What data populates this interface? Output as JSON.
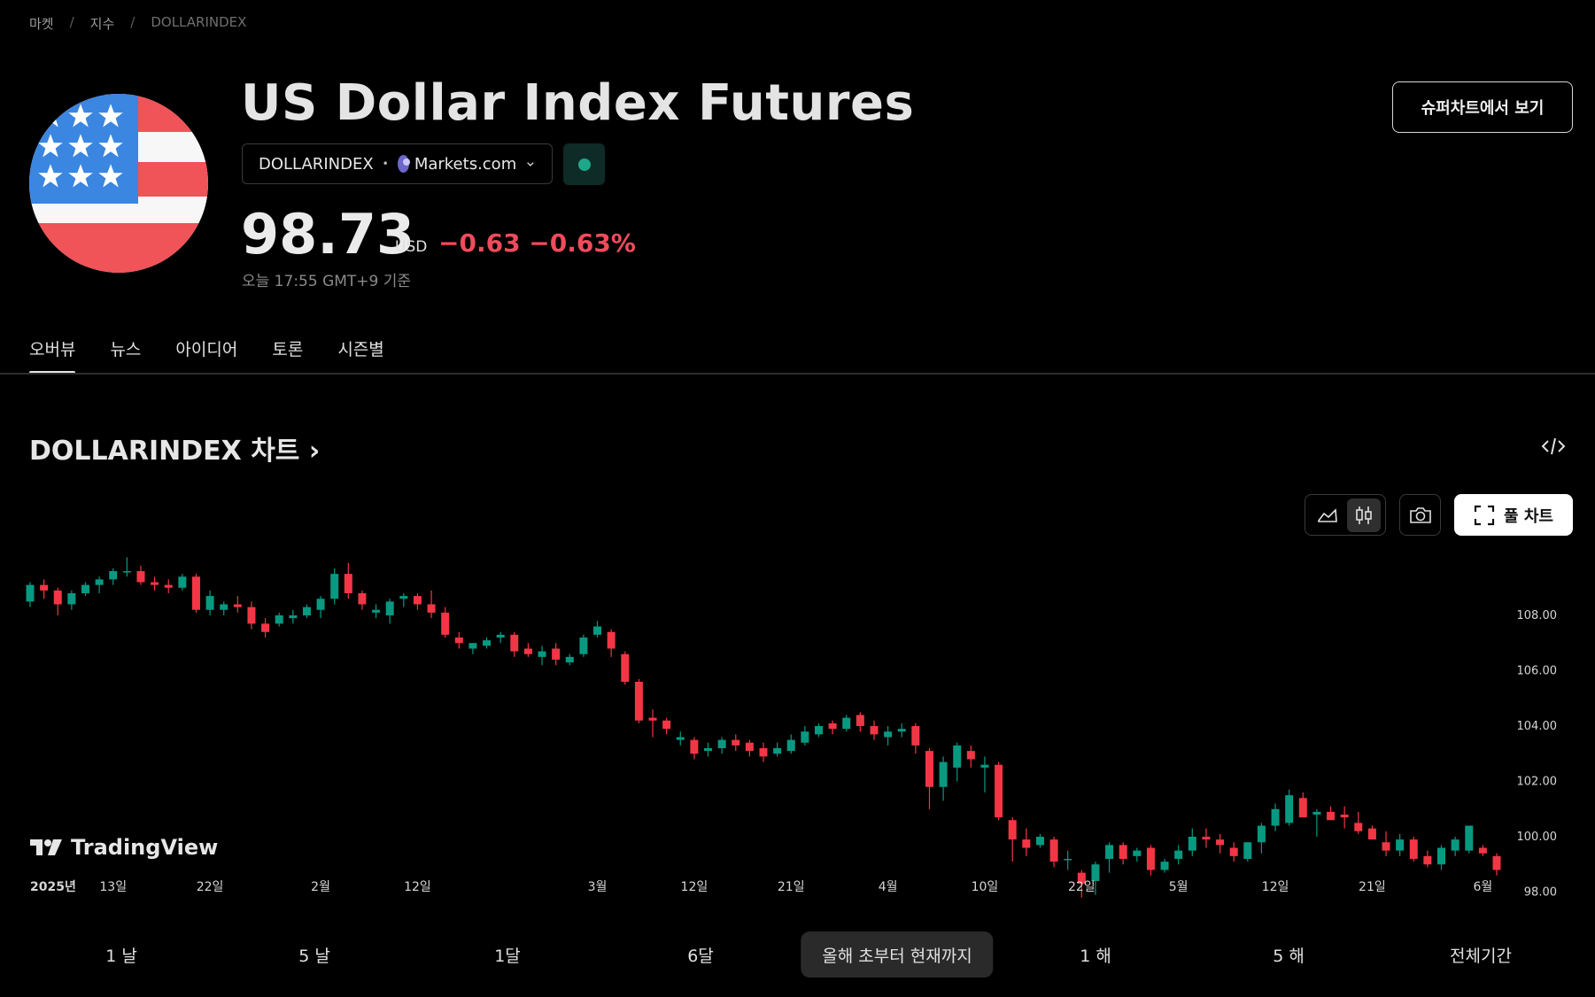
{
  "breadcrumb": [
    "마켓",
    "지수",
    "DOLLARINDEX"
  ],
  "title": "US Dollar Index Futures",
  "symbol": "DOLLARINDEX",
  "provider": "Markets.com",
  "price": "98.73",
  "currency": "USD",
  "change": "−0.63",
  "change_pct": "−0.63%",
  "as_of": "오늘 17:55 GMT+9 기준",
  "supercharts_button": "슈퍼차트에서 보기",
  "tabs": [
    "오버뷰",
    "뉴스",
    "아이디어",
    "토론",
    "시즌별"
  ],
  "chart_heading": "DOLLARINDEX 차트",
  "full_chart_button": "풀 차트",
  "tradingview_logo": "TradingView",
  "ranges": [
    "1 날",
    "5 날",
    "1달",
    "6달",
    "올해 초부터 현재까지",
    "1 해",
    "5 해",
    "전체기간"
  ],
  "active_range": "올해 초부터 현재까지",
  "colors": {
    "up": "#089981",
    "down": "#f23645",
    "accent_dot": "#1ea88a"
  },
  "chart_data": {
    "type": "candlestick",
    "y_ticks": [
      "108.00",
      "106.00",
      "104.00",
      "102.00",
      "100.00",
      "98.00"
    ],
    "ylim": [
      97.6,
      110.4
    ],
    "x_ticks": [
      {
        "label": "2025년",
        "index": 0
      },
      {
        "label": "13일",
        "index": 6
      },
      {
        "label": "22일",
        "index": 13
      },
      {
        "label": "2월",
        "index": 21
      },
      {
        "label": "12일",
        "index": 28
      },
      {
        "label": "3월",
        "index": 41
      },
      {
        "label": "12일",
        "index": 48
      },
      {
        "label": "21일",
        "index": 55
      },
      {
        "label": "4월",
        "index": 62
      },
      {
        "label": "10일",
        "index": 69
      },
      {
        "label": "22일",
        "index": 76
      },
      {
        "label": "5월",
        "index": 83
      },
      {
        "label": "12일",
        "index": 90
      },
      {
        "label": "21일",
        "index": 97
      },
      {
        "label": "6월",
        "index": 105
      }
    ],
    "candles": [
      [
        108.5,
        109.2,
        108.3,
        109.1
      ],
      [
        109.1,
        109.3,
        108.6,
        108.9
      ],
      [
        108.9,
        109.0,
        108.0,
        108.4
      ],
      [
        108.4,
        108.9,
        108.2,
        108.8
      ],
      [
        108.8,
        109.2,
        108.7,
        109.1
      ],
      [
        109.1,
        109.4,
        108.8,
        109.3
      ],
      [
        109.3,
        109.7,
        109.1,
        109.6
      ],
      [
        109.6,
        110.1,
        109.4,
        109.6
      ],
      [
        109.6,
        109.8,
        109.1,
        109.2
      ],
      [
        109.2,
        109.4,
        108.9,
        109.1
      ],
      [
        109.1,
        109.3,
        108.8,
        109.0
      ],
      [
        109.0,
        109.5,
        108.9,
        109.4
      ],
      [
        109.4,
        109.5,
        108.1,
        108.2
      ],
      [
        108.2,
        108.9,
        108.0,
        108.7
      ],
      [
        108.2,
        108.5,
        108.0,
        108.4
      ],
      [
        108.4,
        108.7,
        108.1,
        108.3
      ],
      [
        108.3,
        108.5,
        107.5,
        107.7
      ],
      [
        107.7,
        107.9,
        107.2,
        107.4
      ],
      [
        107.7,
        108.1,
        107.6,
        108.0
      ],
      [
        107.9,
        108.2,
        107.7,
        108.0
      ],
      [
        108.0,
        108.4,
        107.9,
        108.3
      ],
      [
        108.2,
        108.7,
        107.9,
        108.6
      ],
      [
        108.6,
        109.7,
        108.4,
        109.5
      ],
      [
        109.5,
        109.9,
        108.6,
        108.8
      ],
      [
        108.8,
        108.9,
        108.2,
        108.4
      ],
      [
        108.1,
        108.4,
        107.9,
        108.2
      ],
      [
        108.0,
        108.6,
        107.7,
        108.5
      ],
      [
        108.6,
        108.8,
        108.3,
        108.7
      ],
      [
        108.7,
        108.8,
        108.2,
        108.4
      ],
      [
        108.4,
        108.9,
        107.9,
        108.1
      ],
      [
        108.1,
        108.3,
        107.2,
        107.3
      ],
      [
        107.2,
        107.4,
        106.8,
        107.0
      ],
      [
        106.8,
        107.0,
        106.6,
        107.0
      ],
      [
        106.9,
        107.2,
        106.8,
        107.1
      ],
      [
        107.2,
        107.4,
        107.0,
        107.3
      ],
      [
        107.3,
        107.4,
        106.5,
        106.7
      ],
      [
        106.8,
        107.0,
        106.5,
        106.6
      ],
      [
        106.5,
        106.9,
        106.2,
        106.7
      ],
      [
        106.8,
        107.0,
        106.2,
        106.4
      ],
      [
        106.3,
        106.6,
        106.2,
        106.5
      ],
      [
        106.6,
        107.3,
        106.5,
        107.2
      ],
      [
        107.3,
        107.8,
        107.2,
        107.6
      ],
      [
        107.4,
        107.5,
        106.5,
        106.8
      ],
      [
        106.6,
        106.7,
        105.5,
        105.6
      ],
      [
        105.6,
        105.7,
        104.1,
        104.2
      ],
      [
        104.3,
        104.6,
        103.6,
        104.2
      ],
      [
        104.2,
        104.3,
        103.7,
        103.9
      ],
      [
        103.5,
        103.8,
        103.3,
        103.6
      ],
      [
        103.5,
        103.6,
        102.8,
        103.0
      ],
      [
        103.1,
        103.4,
        102.9,
        103.2
      ],
      [
        103.2,
        103.6,
        103.0,
        103.5
      ],
      [
        103.5,
        103.7,
        103.1,
        103.3
      ],
      [
        103.4,
        103.5,
        102.9,
        103.1
      ],
      [
        103.2,
        103.4,
        102.7,
        102.9
      ],
      [
        103.0,
        103.4,
        102.9,
        103.2
      ],
      [
        103.1,
        103.7,
        103.0,
        103.5
      ],
      [
        103.4,
        104.0,
        103.3,
        103.8
      ],
      [
        103.7,
        104.1,
        103.6,
        104.0
      ],
      [
        104.1,
        104.2,
        103.7,
        103.9
      ],
      [
        103.9,
        104.4,
        103.8,
        104.3
      ],
      [
        104.4,
        104.5,
        103.8,
        104.0
      ],
      [
        104.0,
        104.2,
        103.5,
        103.7
      ],
      [
        103.6,
        104.0,
        103.3,
        103.8
      ],
      [
        103.8,
        104.1,
        103.6,
        103.9
      ],
      [
        104.0,
        104.1,
        103.0,
        103.3
      ],
      [
        103.1,
        103.2,
        101.0,
        101.8
      ],
      [
        101.8,
        102.9,
        101.3,
        102.7
      ],
      [
        102.5,
        103.4,
        102.0,
        103.3
      ],
      [
        103.1,
        103.3,
        102.5,
        102.8
      ],
      [
        102.5,
        102.9,
        101.6,
        102.6
      ],
      [
        102.6,
        102.7,
        100.6,
        100.7
      ],
      [
        100.6,
        100.7,
        99.1,
        99.9
      ],
      [
        99.9,
        100.3,
        99.3,
        99.6
      ],
      [
        99.7,
        100.1,
        99.6,
        100.0
      ],
      [
        99.9,
        100.0,
        98.9,
        99.1
      ],
      [
        99.2,
        99.5,
        98.8,
        99.2
      ],
      [
        98.7,
        98.8,
        97.8,
        98.3
      ],
      [
        98.4,
        99.1,
        97.9,
        99.0
      ],
      [
        99.2,
        99.8,
        98.7,
        99.7
      ],
      [
        99.7,
        99.8,
        99.0,
        99.2
      ],
      [
        99.3,
        99.6,
        99.1,
        99.5
      ],
      [
        99.6,
        99.7,
        98.6,
        98.8
      ],
      [
        98.8,
        99.2,
        98.7,
        99.1
      ],
      [
        99.2,
        99.7,
        99.0,
        99.5
      ],
      [
        99.5,
        100.3,
        99.3,
        100.0
      ],
      [
        100.0,
        100.3,
        99.6,
        99.9
      ],
      [
        99.9,
        100.1,
        99.4,
        99.7
      ],
      [
        99.6,
        99.8,
        99.1,
        99.3
      ],
      [
        99.2,
        99.8,
        99.1,
        99.8
      ],
      [
        99.8,
        100.5,
        99.4,
        100.4
      ],
      [
        100.4,
        101.2,
        100.2,
        101.0
      ],
      [
        100.5,
        101.7,
        100.4,
        101.5
      ],
      [
        101.4,
        101.6,
        100.7,
        100.7
      ],
      [
        100.8,
        101.0,
        100.0,
        100.9
      ],
      [
        100.9,
        101.1,
        100.6,
        100.6
      ],
      [
        100.8,
        101.1,
        100.3,
        100.7
      ],
      [
        100.5,
        100.9,
        100.1,
        100.2
      ],
      [
        100.3,
        100.4,
        99.9,
        99.9
      ],
      [
        99.8,
        100.2,
        99.3,
        99.5
      ],
      [
        99.5,
        100.1,
        99.3,
        99.9
      ],
      [
        99.9,
        100.0,
        99.1,
        99.2
      ],
      [
        99.3,
        99.5,
        98.9,
        99.0
      ],
      [
        99.0,
        99.7,
        98.8,
        99.6
      ],
      [
        99.5,
        100.0,
        99.3,
        99.9
      ],
      [
        99.5,
        100.4,
        99.4,
        100.4
      ],
      [
        99.6,
        99.7,
        99.3,
        99.4
      ],
      [
        99.3,
        99.4,
        98.6,
        98.8
      ]
    ]
  }
}
